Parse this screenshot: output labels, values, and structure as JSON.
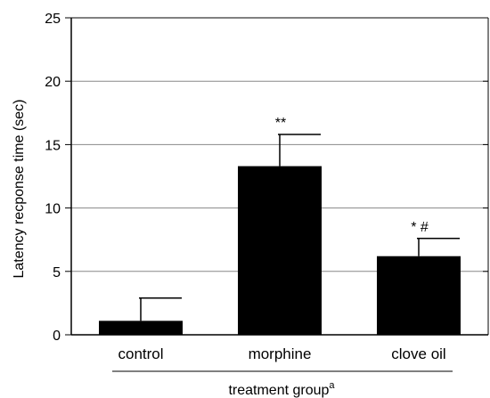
{
  "chart_data": {
    "type": "bar",
    "categories": [
      "control",
      "morphine",
      "clove oil"
    ],
    "values": [
      1.1,
      13.3,
      6.2
    ],
    "errors": [
      1.8,
      2.5,
      1.4
    ],
    "annotations": [
      "",
      "**",
      "* #"
    ],
    "ylabel": "Latency recponse time (sec)",
    "xlabel": "treatment group",
    "xlabel_superscript": "a",
    "ylim": [
      0,
      25
    ],
    "yticks": [
      0,
      5,
      10,
      15,
      20,
      25
    ],
    "grid": "horizontal",
    "bar_color": "#000000",
    "grid_color": "#888888"
  }
}
